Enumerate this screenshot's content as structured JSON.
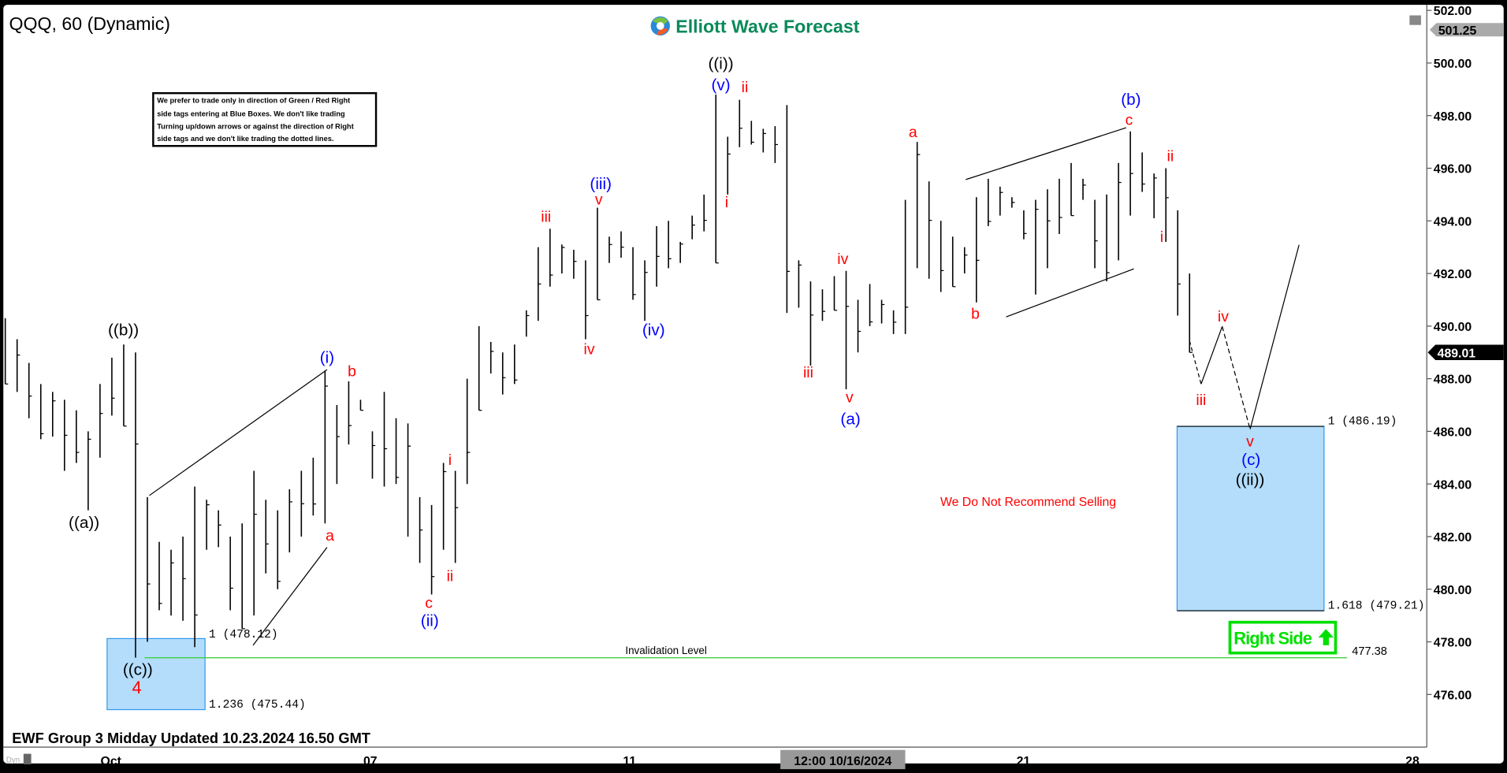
{
  "header": {
    "title": "QQQ, 60 (Dynamic)",
    "logo_text": "Elliott Wave Forecast"
  },
  "note": {
    "lines": [
      "We prefer to trade only in direction of Green / Red Right",
      "side tags entering at Blue Boxes. We don't like trading",
      "Turning up/down arrows or against the direction of Right",
      "side tags and we don't like trading the dotted lines."
    ]
  },
  "footer": {
    "updated": "EWF Group 3 Midday Updated 10.23.2024 16.50 GMT",
    "dyn": "Dyn"
  },
  "colors": {
    "wave_black": "#000000",
    "wave_red": "#ff0000",
    "wave_blue": "#0000ff",
    "blue_box": "#b3ddfb",
    "right_side": "#00e000",
    "invalidation": "#33cc33"
  },
  "annotations": {
    "no_sell": "We Do Not Recommend Selling",
    "invalidation_label": "Invalidation Level",
    "invalidation_value": "477.38",
    "right_side": "Right Side",
    "box1_top": "1 (478.12)",
    "box1_bottom": "1.236 (475.44)",
    "box2_top": "1 (486.19)",
    "box2_bottom": "1.618 (479.21)",
    "waves": {
      "a2": "((a))",
      "b2": "((b))",
      "c2": "((c))",
      "i2": "((i))",
      "ii2": "((ii))",
      "four": "4",
      "p_i": "(i)",
      "p_ii": "(ii)",
      "p_iii": "(iii)",
      "p_iv": "(iv)",
      "p_v": "(v)",
      "p_a": "(a)",
      "p_b": "(b)",
      "p_c": "(c)",
      "r_a1": "a",
      "r_b1": "b",
      "r_c1": "c",
      "r_i1": "i",
      "r_ii1": "ii",
      "r_iii1": "iii",
      "r_iv1": "iv",
      "r_v1": "v",
      "r_i2": "i",
      "r_ii2": "ii",
      "r_iii2": "iii",
      "r_iv2": "iv",
      "r_v2": "v",
      "r_a2": "a",
      "r_b2": "b",
      "r_c2": "c",
      "r_i3": "i",
      "r_ii3": "ii",
      "r_iii3": "iii",
      "r_iv3": "iv",
      "r_v3": "v"
    }
  },
  "chart_data": {
    "type": "bar",
    "symbol": "QQQ",
    "interval": "60",
    "ylim": [
      474.5,
      502.0
    ],
    "y_ticks": [
      "502.00",
      "500.00",
      "498.00",
      "496.00",
      "494.00",
      "492.00",
      "490.00",
      "488.00",
      "486.00",
      "484.00",
      "482.00",
      "480.00",
      "478.00",
      "476.00"
    ],
    "x_ticks": [
      "Oct",
      "07",
      "11",
      "12:00 10/16/2024",
      "21",
      "28"
    ],
    "last_price": "489.01",
    "high_marker": "501.25",
    "grid": false,
    "bars_high_low": [
      [
        490.3,
        487.8
      ],
      [
        489.5,
        487.5
      ],
      [
        488.6,
        486.5
      ],
      [
        487.8,
        485.7
      ],
      [
        487.5,
        485.8
      ],
      [
        487.2,
        484.5
      ],
      [
        486.8,
        484.8
      ],
      [
        486.0,
        483.0
      ],
      [
        487.8,
        485.0
      ],
      [
        488.8,
        486.6
      ],
      [
        489.3,
        486.2
      ],
      [
        489.0,
        477.4
      ],
      [
        483.5,
        478.0
      ],
      [
        481.8,
        479.2
      ],
      [
        481.5,
        479.0
      ],
      [
        482.0,
        478.8
      ],
      [
        483.9,
        477.8
      ],
      [
        483.4,
        481.5
      ],
      [
        483.0,
        481.6
      ],
      [
        482.0,
        479.2
      ],
      [
        482.5,
        478.5
      ],
      [
        484.5,
        479.0
      ],
      [
        483.4,
        480.6
      ],
      [
        483.0,
        480.0
      ],
      [
        483.8,
        481.4
      ],
      [
        484.5,
        482.0
      ],
      [
        485.0,
        482.8
      ],
      [
        488.3,
        482.5
      ],
      [
        487.0,
        484.0
      ],
      [
        487.9,
        485.5
      ],
      [
        487.2,
        486.8
      ],
      [
        486.0,
        484.2
      ],
      [
        487.5,
        483.9
      ],
      [
        486.5,
        484.0
      ],
      [
        486.3,
        482.0
      ],
      [
        483.5,
        481.0
      ],
      [
        483.2,
        479.8
      ],
      [
        484.8,
        481.5
      ],
      [
        484.5,
        481.0
      ],
      [
        488.0,
        484.0
      ],
      [
        490.0,
        486.8
      ],
      [
        489.4,
        488.2
      ],
      [
        489.0,
        487.4
      ],
      [
        489.3,
        487.8
      ],
      [
        490.6,
        489.6
      ],
      [
        493.0,
        490.2
      ],
      [
        493.7,
        491.5
      ],
      [
        493.1,
        492.0
      ],
      [
        492.9,
        491.8
      ],
      [
        492.5,
        489.5
      ],
      [
        494.5,
        491.0
      ],
      [
        493.4,
        492.4
      ],
      [
        493.6,
        492.6
      ],
      [
        493.0,
        491.0
      ],
      [
        492.5,
        490.2
      ],
      [
        493.8,
        491.5
      ],
      [
        494.0,
        492.2
      ],
      [
        493.2,
        492.4
      ],
      [
        494.2,
        493.3
      ],
      [
        495.0,
        493.6
      ],
      [
        498.8,
        492.4
      ],
      [
        497.2,
        495.0
      ],
      [
        498.6,
        496.8
      ],
      [
        497.8,
        496.9
      ],
      [
        497.5,
        496.6
      ],
      [
        497.6,
        496.2
      ],
      [
        498.4,
        490.5
      ],
      [
        492.5,
        490.7
      ],
      [
        491.7,
        488.5
      ],
      [
        491.4,
        490.2
      ],
      [
        491.9,
        490.6
      ],
      [
        492.1,
        487.6
      ],
      [
        491.0,
        489.0
      ],
      [
        491.6,
        490.0
      ],
      [
        491.0,
        490.1
      ],
      [
        490.6,
        489.7
      ],
      [
        494.8,
        489.7
      ],
      [
        497.0,
        492.2
      ],
      [
        495.5,
        491.8
      ],
      [
        494.0,
        491.3
      ],
      [
        493.4,
        491.5
      ],
      [
        493.0,
        492.0
      ],
      [
        494.9,
        490.9
      ],
      [
        495.6,
        493.8
      ],
      [
        495.3,
        494.2
      ],
      [
        494.9,
        494.5
      ],
      [
        494.4,
        493.3
      ],
      [
        494.8,
        491.2
      ],
      [
        495.2,
        492.2
      ],
      [
        495.6,
        493.5
      ],
      [
        496.2,
        494.2
      ],
      [
        495.6,
        494.8
      ],
      [
        494.8,
        492.2
      ],
      [
        495.0,
        491.7
      ],
      [
        496.2,
        492.5
      ],
      [
        497.4,
        494.2
      ],
      [
        496.6,
        495.1
      ],
      [
        495.8,
        494.1
      ],
      [
        496.0,
        493.2
      ],
      [
        494.4,
        490.4
      ],
      [
        492.0,
        489.0
      ]
    ]
  }
}
